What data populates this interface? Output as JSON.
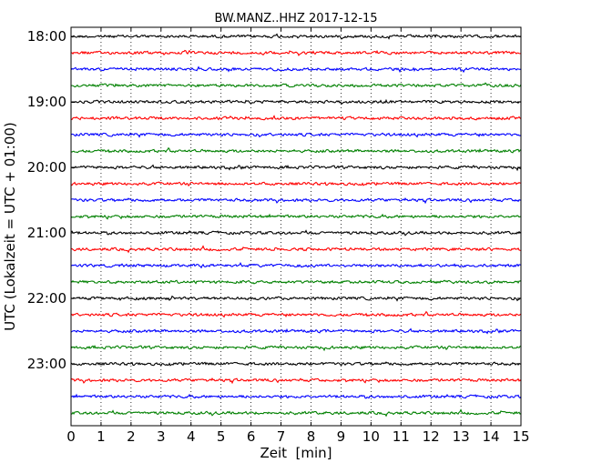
{
  "chart_data": {
    "type": "line",
    "title": "BW.MANZ..HHZ 2017-12-15",
    "xlabel": "Zeit  [min]",
    "ylabel": "UTC (Lokalzeit = UTC + 01:00)",
    "xlim": [
      0,
      15
    ],
    "x_ticks": [
      "0",
      "1",
      "2",
      "3",
      "4",
      "5",
      "6",
      "7",
      "8",
      "9",
      "10",
      "11",
      "12",
      "13",
      "14",
      "15"
    ],
    "y_tick_labels": [
      "18:00",
      "19:00",
      "20:00",
      "21:00",
      "22:00",
      "23:00"
    ],
    "row_interval_minutes": 15,
    "start_time": "18:00",
    "rows": 24,
    "trace_colors": [
      "#000000",
      "#ff0000",
      "#0000ff",
      "#008000"
    ],
    "grid": "vertical dotted lines at each minute"
  }
}
